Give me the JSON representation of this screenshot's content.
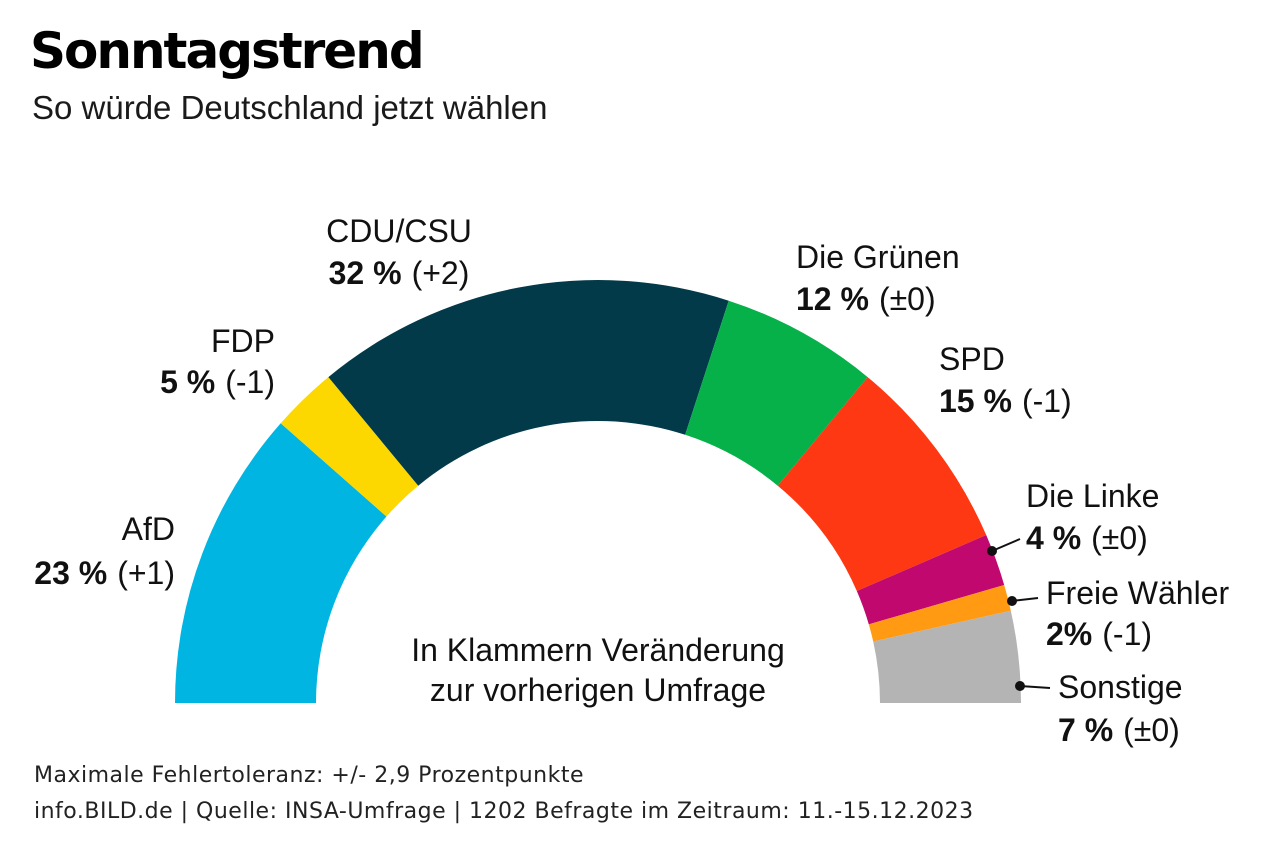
{
  "header": {
    "title": "Sonntagstrend",
    "subtitle": "So würde Deutschland jetzt wählen"
  },
  "chart_data": {
    "type": "pie",
    "variant": "half-donut",
    "title": "Sonntagstrend",
    "subtitle": "So würde Deutschland jetzt wählen",
    "unit": "%",
    "categories": [
      "AfD",
      "FDP",
      "CDU/CSU",
      "Die Grünen",
      "SPD",
      "Die Linke",
      "Freie Wähler",
      "Sonstige"
    ],
    "values": [
      23,
      5,
      32,
      12,
      15,
      4,
      2,
      7
    ],
    "value_labels": [
      "23 %",
      "5 %",
      "32 %",
      "12 %",
      "15 %",
      "4 %",
      "2%",
      "7 %"
    ],
    "changes": [
      "(+1)",
      "(-1)",
      "(+2)",
      "(±0)",
      "(-1)",
      "(±0)",
      "(-1)",
      "(±0)"
    ],
    "colors": [
      "#00b5e2",
      "#fcd800",
      "#033a4a",
      "#07b14a",
      "#fd3813",
      "#c0086f",
      "#ff9a12",
      "#b4b4b4"
    ],
    "annotation": [
      "In Klammern Veränderung",
      "zur vorherigen Umfrage"
    ]
  },
  "footer": {
    "line1": "Maximale Fehlertoleranz: +/- 2,9 Prozentpunkte",
    "line2": "info.BILD.de | Quelle: INSA-Umfrage | 1202 Befragte im Zeitraum: 11.-15.12.2023"
  }
}
